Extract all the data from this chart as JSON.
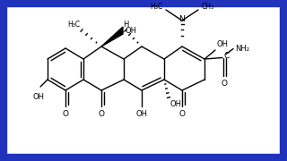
{
  "bg": "#ffffff",
  "border_color": "#2222bb",
  "border_lw": 7,
  "figsize": [
    3.2,
    1.8
  ],
  "dpi": 100,
  "xlim": [
    0,
    320
  ],
  "ylim": [
    0,
    180
  ]
}
